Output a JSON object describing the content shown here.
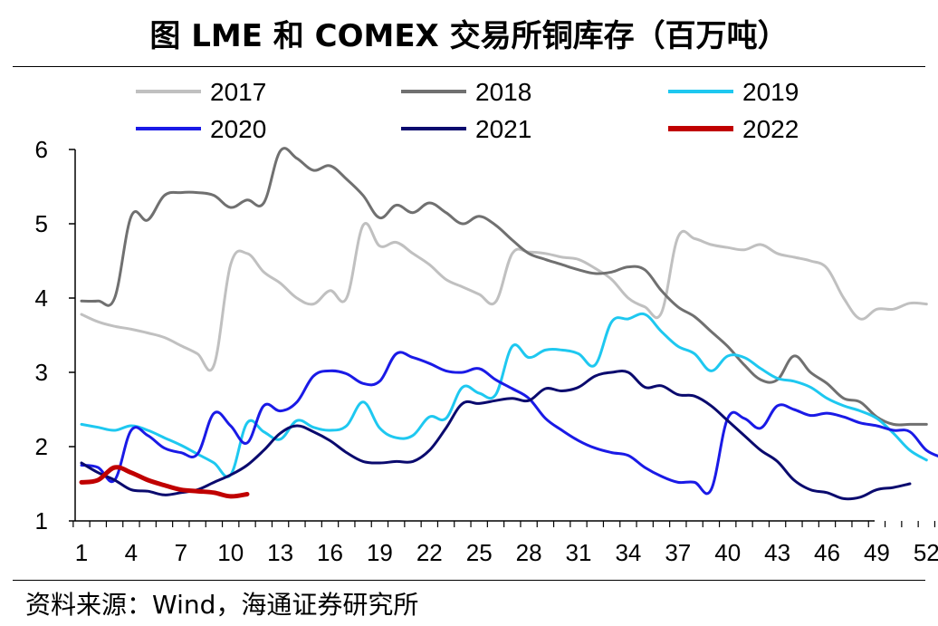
{
  "title": "图  LME 和 COMEX 交易所铜库存（百万吨）",
  "source": "资料来源：Wind，海通证券研究所",
  "chart_data": {
    "type": "line",
    "title": "图 LME 和 COMEX 交易所铜库存（百万吨）",
    "xlabel": "",
    "ylabel": "",
    "xlim": [
      1,
      53
    ],
    "ylim": [
      1,
      6
    ],
    "x_ticks": [
      "1",
      "4",
      "7",
      "10",
      "13",
      "16",
      "19",
      "22",
      "25",
      "28",
      "31",
      "34",
      "37",
      "40",
      "43",
      "46",
      "49",
      "52"
    ],
    "y_ticks": [
      "1",
      "2",
      "3",
      "4",
      "5",
      "6"
    ],
    "legend_position": "top",
    "series": [
      {
        "name": "2017",
        "color": "#c0c0c0",
        "width": 3,
        "x": [
          1,
          2,
          3,
          4,
          5,
          6,
          7,
          8,
          9,
          10,
          11,
          12,
          13,
          14,
          15,
          16,
          17,
          18,
          19,
          20,
          21,
          22,
          23,
          24,
          25,
          26,
          27,
          28,
          29,
          30,
          31,
          32,
          33,
          34,
          35,
          36,
          37,
          38,
          39,
          40,
          41,
          42,
          43,
          44,
          45,
          46,
          47,
          48,
          49,
          50,
          51,
          52
        ],
        "values": [
          3.78,
          3.68,
          3.62,
          3.58,
          3.53,
          3.47,
          3.36,
          3.25,
          3.1,
          4.45,
          4.6,
          4.35,
          4.2,
          4.0,
          3.92,
          4.1,
          4.0,
          4.98,
          4.7,
          4.75,
          4.6,
          4.45,
          4.25,
          4.15,
          4.05,
          3.95,
          4.6,
          4.62,
          4.6,
          4.55,
          4.52,
          4.4,
          4.25,
          4.0,
          3.88,
          3.8,
          4.82,
          4.8,
          4.72,
          4.68,
          4.65,
          4.72,
          4.6,
          4.55,
          4.5,
          4.4,
          4.0,
          3.72,
          3.85,
          3.85,
          3.93,
          3.92
        ]
      },
      {
        "name": "2018",
        "color": "#707070",
        "width": 3,
        "x": [
          1,
          2,
          3,
          4,
          5,
          6,
          7,
          8,
          9,
          10,
          11,
          12,
          13,
          14,
          15,
          16,
          17,
          18,
          19,
          20,
          21,
          22,
          23,
          24,
          25,
          26,
          27,
          28,
          29,
          30,
          31,
          32,
          33,
          34,
          35,
          36,
          37,
          38,
          39,
          40,
          41,
          42,
          43,
          44,
          45,
          46,
          47,
          48,
          49,
          50,
          51,
          52
        ],
        "values": [
          3.96,
          3.96,
          4.0,
          5.1,
          5.05,
          5.38,
          5.42,
          5.42,
          5.38,
          5.22,
          5.32,
          5.28,
          5.98,
          5.88,
          5.72,
          5.78,
          5.6,
          5.38,
          5.08,
          5.25,
          5.15,
          5.28,
          5.15,
          5.0,
          5.1,
          4.98,
          4.78,
          4.6,
          4.52,
          4.45,
          4.38,
          4.33,
          4.35,
          4.42,
          4.38,
          4.1,
          3.88,
          3.75,
          3.55,
          3.35,
          3.1,
          2.9,
          2.9,
          3.22,
          3.0,
          2.85,
          2.65,
          2.6,
          2.4,
          2.3,
          2.3,
          2.3
        ]
      },
      {
        "name": "2019",
        "color": "#1ec8f0",
        "width": 3,
        "x": [
          1,
          2,
          3,
          4,
          5,
          6,
          7,
          8,
          9,
          10,
          11,
          12,
          13,
          14,
          15,
          16,
          17,
          18,
          19,
          20,
          21,
          22,
          23,
          24,
          25,
          26,
          27,
          28,
          29,
          30,
          31,
          32,
          33,
          34,
          35,
          36,
          37,
          38,
          39,
          40,
          41,
          42,
          43,
          44,
          45,
          46,
          47,
          48,
          49,
          50,
          51,
          52
        ],
        "values": [
          2.3,
          2.26,
          2.22,
          2.28,
          2.22,
          2.12,
          2.02,
          1.9,
          1.78,
          1.62,
          2.32,
          2.2,
          2.1,
          2.35,
          2.26,
          2.22,
          2.28,
          2.6,
          2.25,
          2.12,
          2.15,
          2.4,
          2.38,
          2.8,
          2.72,
          2.7,
          3.35,
          3.2,
          3.3,
          3.3,
          3.25,
          3.1,
          3.68,
          3.72,
          3.78,
          3.55,
          3.35,
          3.25,
          3.02,
          3.22,
          3.2,
          3.05,
          2.92,
          2.88,
          2.8,
          2.65,
          2.55,
          2.48,
          2.38,
          2.18,
          1.95,
          1.82
        ]
      },
      {
        "name": "2020",
        "color": "#1a1ae6",
        "width": 3,
        "x": [
          1,
          2,
          3,
          4,
          5,
          6,
          7,
          8,
          9,
          10,
          11,
          12,
          13,
          14,
          15,
          16,
          17,
          18,
          19,
          20,
          21,
          22,
          23,
          24,
          25,
          26,
          27,
          28,
          29,
          30,
          31,
          32,
          33,
          34,
          35,
          36,
          37,
          38,
          39,
          40,
          41,
          42,
          43,
          44,
          45,
          46,
          47,
          48,
          49,
          50,
          51,
          52,
          53
        ],
        "values": [
          1.75,
          1.72,
          1.55,
          2.22,
          2.15,
          1.98,
          1.92,
          1.9,
          2.45,
          2.28,
          2.05,
          2.55,
          2.48,
          2.6,
          2.95,
          3.02,
          2.98,
          2.85,
          2.88,
          3.25,
          3.2,
          3.12,
          3.02,
          3.0,
          3.05,
          2.9,
          2.78,
          2.65,
          2.38,
          2.22,
          2.08,
          1.98,
          1.92,
          1.88,
          1.72,
          1.6,
          1.52,
          1.52,
          1.42,
          2.38,
          2.38,
          2.25,
          2.55,
          2.5,
          2.42,
          2.45,
          2.4,
          2.32,
          2.28,
          2.22,
          2.2,
          1.95,
          1.85
        ]
      },
      {
        "name": "2021",
        "color": "#0a0a6e",
        "width": 3,
        "x": [
          1,
          2,
          3,
          4,
          5,
          6,
          7,
          8,
          9,
          10,
          11,
          12,
          13,
          14,
          15,
          16,
          17,
          18,
          19,
          20,
          21,
          22,
          23,
          24,
          25,
          26,
          27,
          28,
          29,
          30,
          31,
          32,
          33,
          34,
          35,
          36,
          37,
          38,
          39,
          40,
          41,
          42,
          43,
          44,
          45,
          46,
          47,
          48,
          49,
          50,
          51
        ],
        "values": [
          1.78,
          1.65,
          1.55,
          1.42,
          1.4,
          1.35,
          1.38,
          1.42,
          1.52,
          1.62,
          1.75,
          1.95,
          2.18,
          2.28,
          2.2,
          2.08,
          1.92,
          1.8,
          1.78,
          1.8,
          1.8,
          1.95,
          2.25,
          2.58,
          2.58,
          2.62,
          2.65,
          2.62,
          2.78,
          2.75,
          2.8,
          2.95,
          3.0,
          3.0,
          2.8,
          2.82,
          2.7,
          2.68,
          2.55,
          2.35,
          2.15,
          1.95,
          1.8,
          1.55,
          1.42,
          1.38,
          1.3,
          1.32,
          1.42,
          1.45,
          1.5
        ]
      },
      {
        "name": "2022",
        "color": "#c00000",
        "width": 5,
        "x": [
          1,
          2,
          3,
          4,
          5,
          6,
          7,
          8,
          9,
          10,
          11
        ],
        "values": [
          1.52,
          1.55,
          1.72,
          1.65,
          1.55,
          1.48,
          1.42,
          1.4,
          1.38,
          1.33,
          1.36
        ]
      }
    ]
  }
}
